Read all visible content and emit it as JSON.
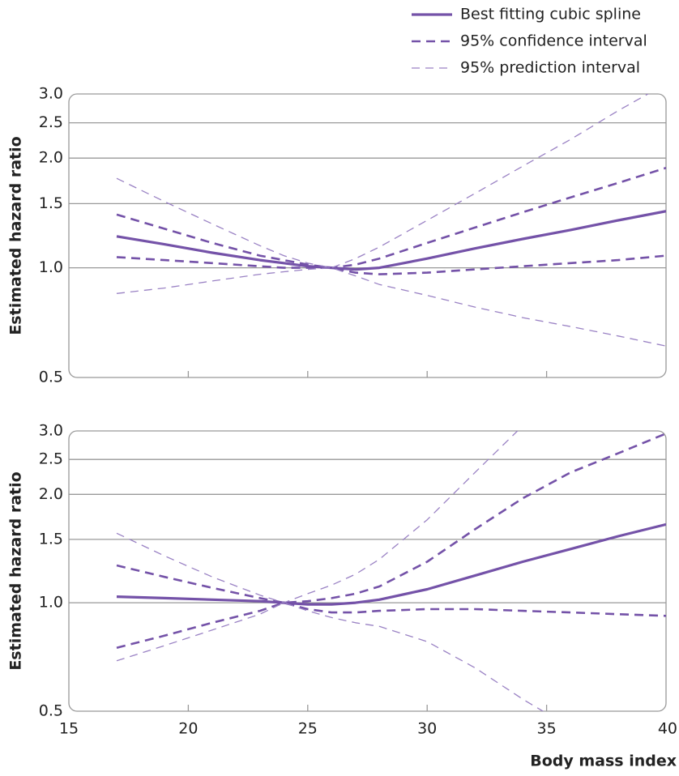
{
  "chart_data": [
    {
      "type": "line",
      "ylabel": "Estimated hazard ratio",
      "log_y": true,
      "grid": true,
      "x": [
        17,
        19,
        21,
        23,
        24,
        25,
        26,
        27,
        28,
        30,
        32,
        34,
        36,
        38,
        40
      ],
      "xlim": [
        15,
        40
      ],
      "xticks": [
        15,
        20,
        25,
        30,
        35,
        40
      ],
      "ylim": [
        0.5,
        3.0
      ],
      "yticks": [
        {
          "value": 0.5,
          "label": "0.5"
        },
        {
          "value": 1.0,
          "label": "1.0"
        },
        {
          "value": 1.5,
          "label": "1.5"
        },
        {
          "value": 2.0,
          "label": "2.0"
        },
        {
          "value": 2.5,
          "label": "2.5"
        },
        {
          "value": 3.0,
          "label": "3.0"
        }
      ],
      "legend": "top-right",
      "series": [
        {
          "name": "Best fitting cubic spline",
          "color": "#7452a8",
          "style": "solid",
          "values": [
            1.22,
            1.16,
            1.1,
            1.05,
            1.03,
            1.01,
            1.0,
            0.99,
            1.0,
            1.06,
            1.13,
            1.2,
            1.27,
            1.35,
            1.43
          ]
        },
        {
          "name": "95% confidence interval",
          "color": "#7452a8",
          "style": "dashed",
          "upper": [
            1.4,
            1.28,
            1.17,
            1.08,
            1.05,
            1.02,
            1.0,
            1.02,
            1.06,
            1.17,
            1.29,
            1.42,
            1.56,
            1.71,
            1.88
          ],
          "lower": [
            1.07,
            1.05,
            1.03,
            1.01,
            1.0,
            1.0,
            1.0,
            0.97,
            0.96,
            0.97,
            0.99,
            1.01,
            1.03,
            1.05,
            1.08
          ]
        },
        {
          "name": "95% prediction interval",
          "color": "#9a82c4",
          "style": "thin-dashed",
          "upper": [
            1.76,
            1.52,
            1.32,
            1.15,
            1.08,
            1.03,
            1.0,
            1.06,
            1.14,
            1.35,
            1.6,
            1.9,
            2.25,
            2.7,
            3.2
          ],
          "lower": [
            0.85,
            0.88,
            0.92,
            0.96,
            0.975,
            0.99,
            1.0,
            0.95,
            0.9,
            0.84,
            0.78,
            0.73,
            0.69,
            0.65,
            0.61
          ]
        }
      ]
    },
    {
      "type": "line",
      "ylabel": "Estimated hazard ratio",
      "xlabel": "Body mass index",
      "log_y": true,
      "grid": true,
      "x": [
        17,
        19,
        21,
        23,
        24,
        25,
        26,
        27,
        28,
        30,
        32,
        34,
        36,
        38,
        40
      ],
      "xlim": [
        15,
        40
      ],
      "xticks": [
        15,
        20,
        25,
        30,
        35,
        40
      ],
      "ylim": [
        0.5,
        3.0
      ],
      "yticks": [
        {
          "value": 0.5,
          "label": "0.5"
        },
        {
          "value": 1.0,
          "label": "1.0"
        },
        {
          "value": 1.5,
          "label": "1.5"
        },
        {
          "value": 2.0,
          "label": "2.0"
        },
        {
          "value": 2.5,
          "label": "2.5"
        },
        {
          "value": 3.0,
          "label": "3.0"
        }
      ],
      "series": [
        {
          "color": "#7452a8",
          "style": "solid",
          "values": [
            1.04,
            1.03,
            1.02,
            1.01,
            1.0,
            0.99,
            0.99,
            1.0,
            1.02,
            1.09,
            1.19,
            1.3,
            1.41,
            1.53,
            1.65
          ]
        },
        {
          "color": "#7452a8",
          "style": "dashed",
          "upper": [
            1.27,
            1.18,
            1.1,
            1.03,
            1.0,
            1.01,
            1.03,
            1.06,
            1.11,
            1.3,
            1.6,
            1.95,
            2.3,
            2.6,
            2.95
          ],
          "lower": [
            0.75,
            0.81,
            0.88,
            0.95,
            1.0,
            0.96,
            0.94,
            0.94,
            0.95,
            0.96,
            0.96,
            0.95,
            0.94,
            0.93,
            0.92
          ]
        },
        {
          "color": "#9a82c4",
          "style": "thin-dashed",
          "upper": [
            1.56,
            1.35,
            1.18,
            1.05,
            1.0,
            1.06,
            1.12,
            1.2,
            1.32,
            1.7,
            2.3,
            3.1,
            4.0,
            5.0,
            6.0
          ],
          "lower": [
            0.69,
            0.76,
            0.84,
            0.93,
            1.0,
            0.95,
            0.91,
            0.88,
            0.86,
            0.78,
            0.66,
            0.54,
            0.45,
            0.38,
            0.32
          ]
        }
      ]
    }
  ]
}
